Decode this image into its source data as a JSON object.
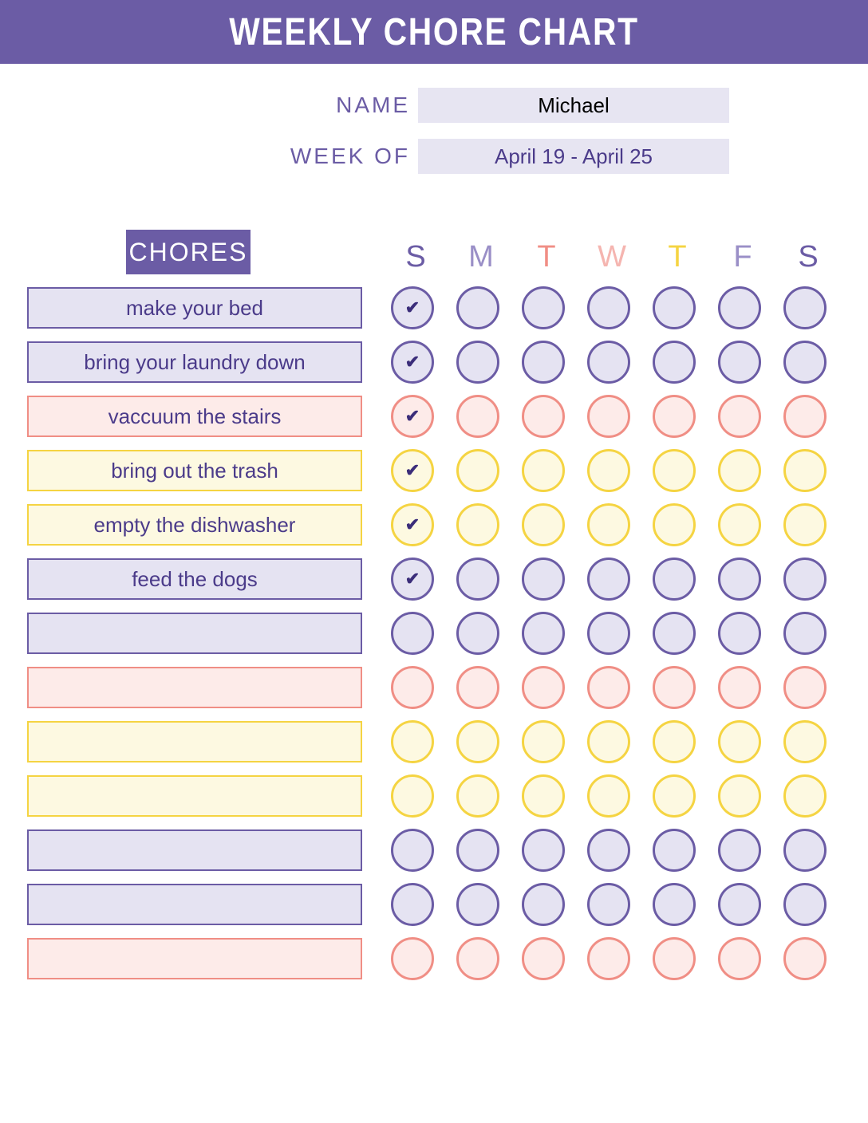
{
  "colors": {
    "header_bg": "#6b5ca5",
    "purple": "#6b5ca5",
    "purple_text": "#4b3b8a",
    "purple_dark": "#3b2d7a",
    "purple_fill": "#e5e3f2",
    "purple_border": "#6b5ca5",
    "pink_fill": "#fdebe9",
    "pink_border": "#f08e85",
    "pink_text": "#f08e85",
    "yellow_fill": "#fdf9e1",
    "yellow_border": "#f5d442",
    "yellow_text": "#f5d442",
    "info_bg": "#e7e5f2",
    "black": "#000000"
  },
  "header": {
    "title": "WEEKLY CHORE CHART"
  },
  "info": {
    "name_label": "NAME",
    "name_value": "Michael",
    "week_label": "WEEK OF",
    "week_value": "April 19 - April 25"
  },
  "chores_header": "CHORES",
  "days": [
    {
      "letter": "S",
      "color": "#6b5ca5"
    },
    {
      "letter": "M",
      "color": "#9a8fc7"
    },
    {
      "letter": "T",
      "color": "#f08e85"
    },
    {
      "letter": "W",
      "color": "#f5b5b0"
    },
    {
      "letter": "T",
      "color": "#f5d442"
    },
    {
      "letter": "F",
      "color": "#9a8fc7"
    },
    {
      "letter": "S",
      "color": "#6b5ca5"
    }
  ],
  "rows": [
    {
      "label": "make your bed",
      "scheme": "purple",
      "checks": [
        true,
        false,
        false,
        false,
        false,
        false,
        false
      ]
    },
    {
      "label": "bring your laundry down",
      "scheme": "purple",
      "checks": [
        true,
        false,
        false,
        false,
        false,
        false,
        false
      ]
    },
    {
      "label": "vaccuum the stairs",
      "scheme": "pink",
      "checks": [
        true,
        false,
        false,
        false,
        false,
        false,
        false
      ]
    },
    {
      "label": "bring out the trash",
      "scheme": "yellow",
      "checks": [
        true,
        false,
        false,
        false,
        false,
        false,
        false
      ]
    },
    {
      "label": "empty the dishwasher",
      "scheme": "yellow",
      "checks": [
        true,
        false,
        false,
        false,
        false,
        false,
        false
      ]
    },
    {
      "label": "feed the dogs",
      "scheme": "purple",
      "checks": [
        true,
        false,
        false,
        false,
        false,
        false,
        false
      ]
    },
    {
      "label": "",
      "scheme": "purple",
      "checks": [
        false,
        false,
        false,
        false,
        false,
        false,
        false
      ]
    },
    {
      "label": "",
      "scheme": "pink",
      "checks": [
        false,
        false,
        false,
        false,
        false,
        false,
        false
      ]
    },
    {
      "label": "",
      "scheme": "yellow",
      "checks": [
        false,
        false,
        false,
        false,
        false,
        false,
        false
      ]
    },
    {
      "label": "",
      "scheme": "yellow",
      "checks": [
        false,
        false,
        false,
        false,
        false,
        false,
        false
      ]
    },
    {
      "label": "",
      "scheme": "purple",
      "checks": [
        false,
        false,
        false,
        false,
        false,
        false,
        false
      ]
    },
    {
      "label": "",
      "scheme": "purple",
      "checks": [
        false,
        false,
        false,
        false,
        false,
        false,
        false
      ]
    },
    {
      "label": "",
      "scheme": "pink",
      "checks": [
        false,
        false,
        false,
        false,
        false,
        false,
        false
      ]
    }
  ],
  "schemes": {
    "purple": {
      "fill": "#e5e3f2",
      "border": "#6b5ca5",
      "text": "#4b3b8a",
      "circle_border": "#6b5ca5",
      "circle_fill": "#e5e3f2"
    },
    "pink": {
      "fill": "#fdebe9",
      "border": "#f08e85",
      "text": "#4b3b8a",
      "circle_border": "#f08e85",
      "circle_fill": "#fdebe9"
    },
    "yellow": {
      "fill": "#fdf9e1",
      "border": "#f5d442",
      "text": "#4b3b8a",
      "circle_border": "#f5d442",
      "circle_fill": "#fdf9e1"
    }
  },
  "checkmark": "✔",
  "checkmark_color": "#3b2d7a"
}
